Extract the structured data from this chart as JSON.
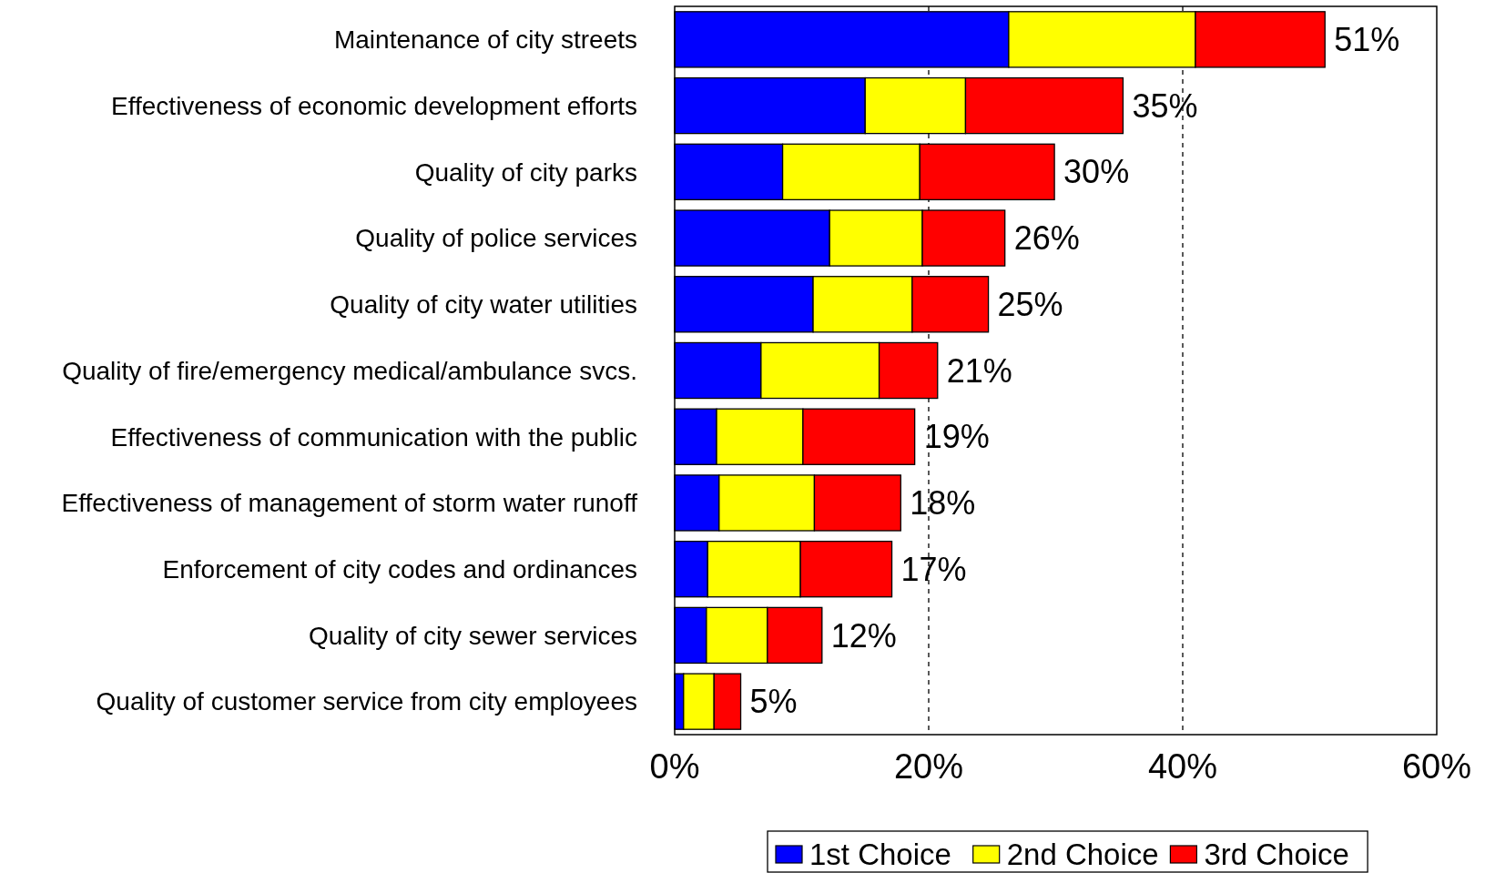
{
  "chart_data": {
    "type": "bar",
    "orientation": "horizontal",
    "stacked": true,
    "categories": [
      "Maintenance of city streets",
      "Effectiveness of economic development efforts",
      "Quality of city parks",
      "Quality of police services",
      "Quality of city water utilities",
      "Quality of fire/emergency medical/ambulance svcs.",
      "Effectiveness of communication with the public",
      "Effectiveness of management of storm water runoff",
      "Enforcement of city codes and ordinances",
      "Quality of city sewer services",
      "Quality of customer service from city employees"
    ],
    "series": [
      {
        "name": "1st Choice",
        "color": "#0000ff",
        "values": [
          26.3,
          15.0,
          8.5,
          12.2,
          10.9,
          6.8,
          3.3,
          3.5,
          2.6,
          2.5,
          0.7
        ]
      },
      {
        "name": "2nd Choice",
        "color": "#ffff00",
        "values": [
          14.7,
          7.9,
          10.8,
          7.3,
          7.8,
          9.3,
          6.8,
          7.5,
          7.3,
          4.8,
          2.4
        ]
      },
      {
        "name": "3rd Choice",
        "color": "#ff0000",
        "values": [
          10.2,
          12.4,
          10.6,
          6.5,
          6.0,
          4.6,
          8.8,
          6.8,
          7.2,
          4.3,
          2.1
        ]
      }
    ],
    "xlim": [
      0,
      60
    ],
    "xticks": [
      {
        "value": 0,
        "label": "0%"
      },
      {
        "value": 20,
        "label": "20%"
      },
      {
        "value": 40,
        "label": "40%"
      },
      {
        "value": 60,
        "label": "60%"
      }
    ],
    "grid": "x",
    "legend": "bottom",
    "totals": [
      "51%",
      "35%",
      "30%",
      "26%",
      "25%",
      "21%",
      "19%",
      "18%",
      "17%",
      "12%",
      "5%"
    ]
  }
}
